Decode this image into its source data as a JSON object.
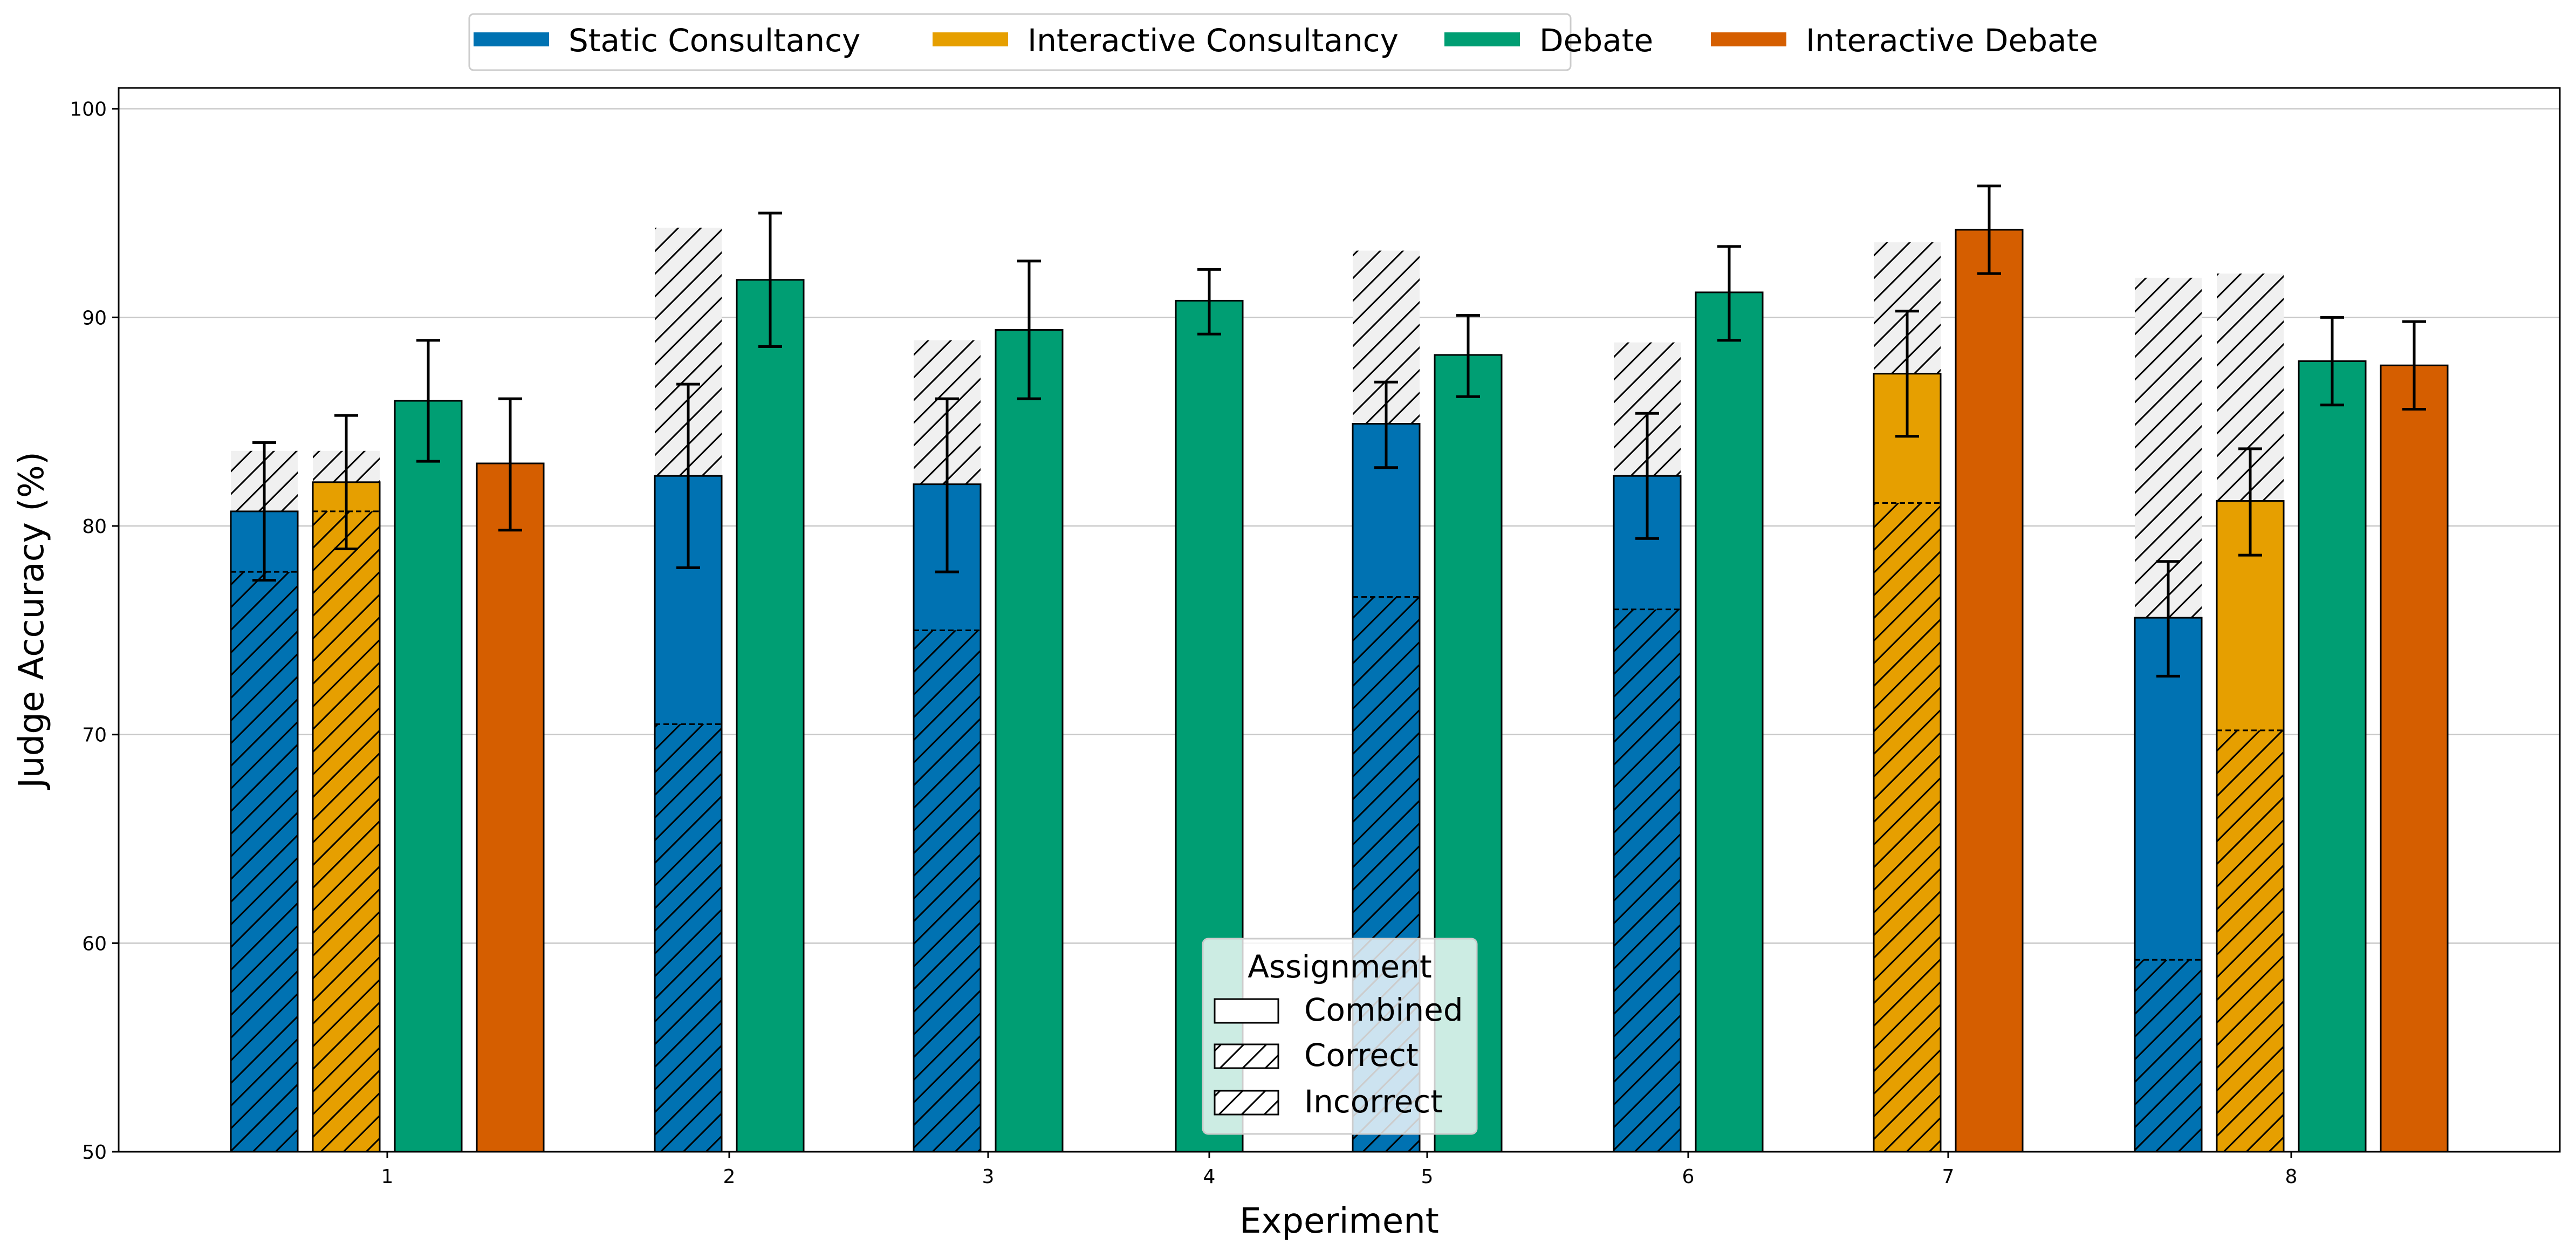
{
  "chart_data": {
    "type": "bar",
    "xlabel": "Experiment",
    "ylabel": "Judge Accuracy (%)",
    "ylim": [
      50,
      101
    ],
    "yticks": [
      50,
      60,
      70,
      80,
      90,
      100
    ],
    "grid": "horizontal",
    "x_tick_labels": [
      "1",
      "2",
      "3",
      "4",
      "5",
      "6",
      "7",
      "8"
    ],
    "colors": {
      "Static Consultancy": "#0072b2",
      "Interactive Consultancy": "#e69f00",
      "Debate": "#009e73",
      "Interactive Debate": "#d55e00",
      "incorrect_background": "#f0f0f0"
    },
    "legend": {
      "placement": "top-center",
      "entries": [
        "Static Consultancy",
        "Interactive Consultancy",
        "Debate",
        "Interactive Debate"
      ]
    },
    "assignment_legend": {
      "placement": "bottom-center",
      "title": "Assignment",
      "entries": [
        "Combined",
        "Correct",
        "Incorrect"
      ]
    },
    "groups": [
      {
        "experiment": "1",
        "bars": [
          {
            "series": "Static Consultancy",
            "combined": 80.7,
            "err": [
              77.4,
              84.0
            ],
            "correct": 77.8,
            "incorrect": 83.6
          },
          {
            "series": "Interactive Consultancy",
            "combined": 82.1,
            "err": [
              78.9,
              85.3
            ],
            "correct": 80.7,
            "incorrect": 83.6
          },
          {
            "series": "Debate",
            "combined": 86.0,
            "err": [
              83.1,
              88.9
            ]
          },
          {
            "series": "Interactive Debate",
            "combined": 83.0,
            "err": [
              79.8,
              86.1
            ]
          }
        ]
      },
      {
        "experiment": "2",
        "bars": [
          {
            "series": "Static Consultancy",
            "combined": 82.4,
            "err": [
              78.0,
              86.8
            ],
            "correct": 70.5,
            "incorrect": 94.3
          },
          {
            "series": "Debate",
            "combined": 91.8,
            "err": [
              88.6,
              95.0
            ]
          }
        ]
      },
      {
        "experiment": "3",
        "bars": [
          {
            "series": "Static Consultancy",
            "combined": 82.0,
            "err": [
              77.8,
              86.1
            ],
            "correct": 75.0,
            "incorrect": 88.9
          },
          {
            "series": "Debate",
            "combined": 89.4,
            "err": [
              86.1,
              92.7
            ]
          }
        ]
      },
      {
        "experiment": "4",
        "bars": [
          {
            "series": "Debate",
            "combined": 90.8,
            "err": [
              89.2,
              92.3
            ]
          }
        ]
      },
      {
        "experiment": "5",
        "bars": [
          {
            "series": "Static Consultancy",
            "combined": 84.9,
            "err": [
              82.8,
              86.9
            ],
            "correct": 76.6,
            "incorrect": 93.2
          },
          {
            "series": "Debate",
            "combined": 88.2,
            "err": [
              86.2,
              90.1
            ]
          }
        ]
      },
      {
        "experiment": "6",
        "bars": [
          {
            "series": "Static Consultancy",
            "combined": 82.4,
            "err": [
              79.4,
              85.4
            ],
            "correct": 76.0,
            "incorrect": 88.8
          },
          {
            "series": "Debate",
            "combined": 91.2,
            "err": [
              88.9,
              93.4
            ]
          }
        ]
      },
      {
        "experiment": "7",
        "bars": [
          {
            "series": "Interactive Consultancy",
            "combined": 87.3,
            "err": [
              84.3,
              90.3
            ],
            "correct": 81.1,
            "incorrect": 93.6
          },
          {
            "series": "Interactive Debate",
            "combined": 94.2,
            "err": [
              92.1,
              96.3
            ]
          }
        ]
      },
      {
        "experiment": "8",
        "bars": [
          {
            "series": "Static Consultancy",
            "combined": 75.6,
            "err": [
              72.8,
              78.3
            ],
            "correct": 59.2,
            "incorrect": 91.9
          },
          {
            "series": "Interactive Consultancy",
            "combined": 81.2,
            "err": [
              78.6,
              83.7
            ],
            "correct": 70.2,
            "incorrect": 92.1
          },
          {
            "series": "Debate",
            "combined": 87.9,
            "err": [
              85.8,
              90.0
            ]
          },
          {
            "series": "Interactive Debate",
            "combined": 87.7,
            "err": [
              85.6,
              89.8
            ]
          }
        ]
      }
    ]
  }
}
